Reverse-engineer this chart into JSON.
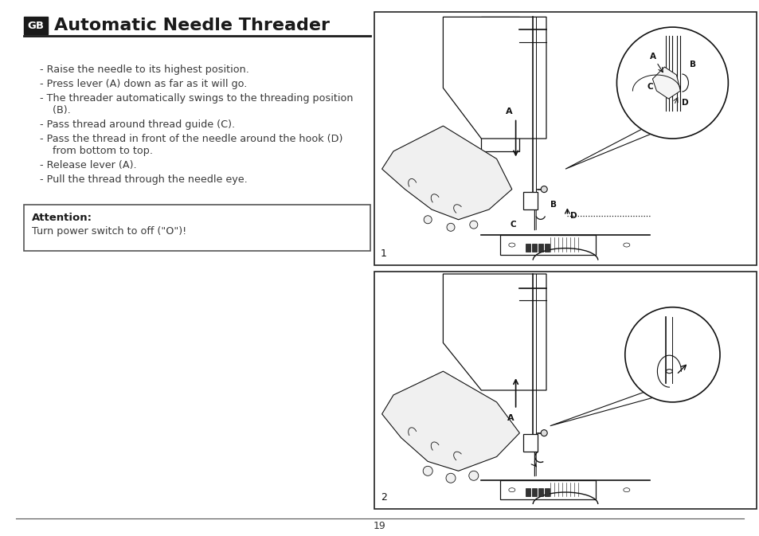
{
  "title": "Automatic Needle Threader",
  "gb_label": "GB",
  "bg_color": "#ffffff",
  "text_color": "#3a3a3a",
  "title_color": "#1a1a1a",
  "bullet_points": [
    "Raise the needle to its highest position.",
    "Press lever (A) down as far as it will go.",
    "The threader automatically swings to the threading position\n   (B).",
    "Pass thread around thread guide (C).",
    "Pass the thread in front of the needle around the hook (D)\n   from bottom to top.",
    "Release lever (A).",
    "Pull the thread through the needle eye."
  ],
  "attention_title": "Attention:",
  "attention_body": "Turn power switch to off (\"O\")!",
  "page_number": "19",
  "image1_label": "1",
  "image2_label": "2",
  "lc": "#111111",
  "panel_bg": "#ffffff"
}
